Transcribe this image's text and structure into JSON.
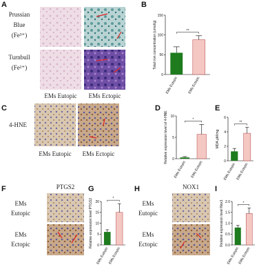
{
  "panel_labels": [
    "A",
    "B",
    "C",
    "D",
    "E",
    "F",
    "G",
    "H",
    "I"
  ],
  "panel_a": {
    "row_labels": [
      [
        "Prussian",
        "Blue",
        "(Fe³⁺)"
      ],
      [
        "Turnbull",
        "(Fe²⁺)"
      ]
    ],
    "column_labels": [
      "EMs Eutopic",
      "EMs Ectopic"
    ]
  },
  "panel_c": {
    "row_label": "4-HNE",
    "column_labels": [
      "EMs Eutopic",
      "EMs Ectopic"
    ]
  },
  "panel_f": {
    "title": "PTGS2",
    "row_labels": [
      [
        "EMs",
        "Eutopic"
      ],
      [
        "EMs",
        "Ectopic"
      ]
    ]
  },
  "panel_h": {
    "title": "NOX1",
    "row_labels": [
      [
        "EMs",
        "Eutopic"
      ],
      [
        "EMs",
        "Ectopic"
      ]
    ]
  },
  "chart_data": [
    {
      "type": "bar",
      "ylabel": "Total iron concentration (umol/g)",
      "categories": [
        "EMs Eutopic",
        "EMs Ectopic"
      ],
      "values": [
        55,
        88
      ],
      "errors": [
        15,
        10
      ],
      "colors": [
        "#1e7b1e",
        "#f4c7c3"
      ],
      "ylim": [
        0,
        150
      ],
      "yticks": [
        0,
        50,
        100,
        150
      ],
      "annotation": "**"
    },
    {
      "type": "bar",
      "ylabel": "Relative expression level of 4-HNE",
      "categories": [
        "EMs Eutopic",
        "EMs Ectopic"
      ],
      "values": [
        0.3,
        5.7
      ],
      "errors": [
        0.2,
        2.3
      ],
      "colors": [
        "#1e7b1e",
        "#f4c7c3"
      ],
      "ylim": [
        0,
        10
      ],
      "yticks": [
        0,
        5,
        10
      ],
      "annotation": "*"
    },
    {
      "type": "bar",
      "ylabel": "MDA μM/mg",
      "categories": [
        "EMs Eutopic",
        "EMs Ectopic"
      ],
      "values": [
        1.3,
        3.8
      ],
      "errors": [
        0.4,
        0.8
      ],
      "colors": [
        "#1e7b1e",
        "#f4c7c3"
      ],
      "ylim": [
        0,
        6
      ],
      "yticks": [
        0,
        2,
        4,
        6
      ],
      "annotation": "**"
    },
    {
      "type": "bar",
      "ylabel": "Relative expression level PTGS2",
      "categories": [
        "EMs Eutopic",
        "EMs Ectopic"
      ],
      "values": [
        6,
        15
      ],
      "errors": [
        1,
        4
      ],
      "colors": [
        "#1e7b1e",
        "#f4c7c3"
      ],
      "ylim": [
        0,
        20
      ],
      "yticks": [
        0,
        5,
        10,
        15,
        20
      ],
      "annotation": "*"
    },
    {
      "type": "bar",
      "ylabel": "Relative expression level Nox1",
      "categories": [
        "EMs Eutopic",
        "EMs Ectopic"
      ],
      "values": [
        0.8,
        1.45
      ],
      "errors": [
        0.1,
        0.25
      ],
      "colors": [
        "#1e7b1e",
        "#f4c7c3"
      ],
      "ylim": [
        0,
        2
      ],
      "yticks": [
        {
          "value": 0,
          "label": "0.0"
        },
        {
          "value": 0.5,
          "label": "0.5"
        },
        {
          "value": 1,
          "label": "1.0"
        },
        {
          "value": 1.5,
          "label": "1.5"
        },
        {
          "value": 2,
          "label": "2.0"
        }
      ],
      "annotation": "*"
    }
  ]
}
